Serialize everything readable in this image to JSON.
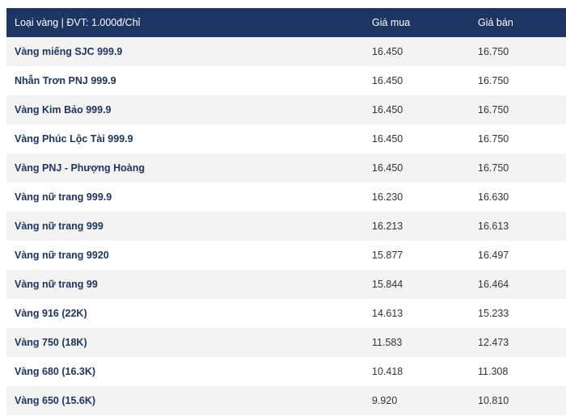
{
  "table": {
    "header": [
      "Loại vàng | ĐVT: 1.000đ/Chỉ",
      "Giá mua",
      "Giá bán"
    ],
    "rows": [
      [
        "Vàng miếng SJC 999.9",
        "16.450",
        "16.750"
      ],
      [
        "Nhẫn Trơn PNJ 999.9",
        "16.450",
        "16.750"
      ],
      [
        "Vàng Kim Bảo 999.9",
        "16.450",
        "16.750"
      ],
      [
        "Vàng Phúc Lộc Tài 999.9",
        "16.450",
        "16.750"
      ],
      [
        "Vàng PNJ - Phượng Hoàng",
        "16.450",
        "16.750"
      ],
      [
        "Vàng nữ trang 999.9",
        "16.230",
        "16.630"
      ],
      [
        "Vàng nữ trang 999",
        "16.213",
        "16.613"
      ],
      [
        "Vàng nữ trang 9920",
        "15.877",
        "16.497"
      ],
      [
        "Vàng nữ trang 99",
        "15.844",
        "16.464"
      ],
      [
        "Vàng 916 (22K)",
        "14.613",
        "15.233"
      ],
      [
        "Vàng 750 (18K)",
        "11.583",
        "12.473"
      ],
      [
        "Vàng 680 (16.3K)",
        "10.418",
        "11.308"
      ],
      [
        "Vàng 650 (15.6K)",
        "9.920",
        "10.810"
      ]
    ]
  }
}
